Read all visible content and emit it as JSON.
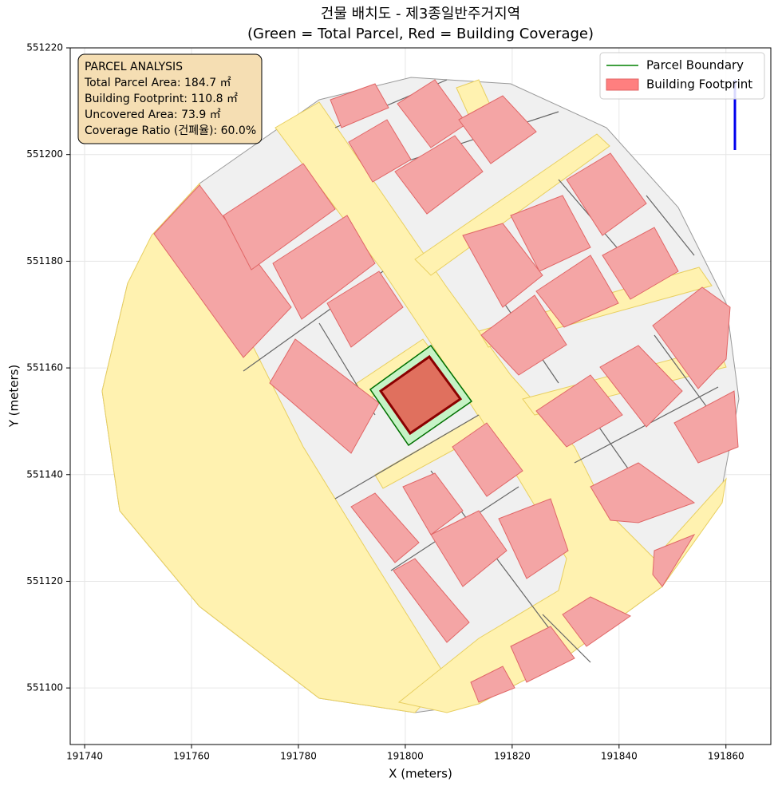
{
  "chart_data": {
    "type": "map",
    "title": "건물 배치도 - 제3종일반주거지역",
    "subtitle": "(Green = Total Parcel, Red = Building Coverage)",
    "xlabel": "X (meters)",
    "ylabel": "Y (meters)",
    "xlim": [
      191737.3,
      191868.4
    ],
    "ylim": [
      551089.4,
      551220
    ],
    "xticks": [
      191740,
      191760,
      191780,
      191800,
      191820,
      191840,
      191860
    ],
    "yticks": [
      551100,
      551120,
      551140,
      551160,
      551180,
      551200,
      551220
    ],
    "grid": true,
    "annotation": [
      "PARCEL ANALYSIS",
      "Total Parcel Area: 184.7 ㎡",
      "Building Footprint: 110.8 ㎡",
      "Uncovered Area: 73.9 ㎡",
      "Coverage Ratio (건폐율): 60.0%"
    ],
    "legend_loc": "upper right",
    "legend": [
      {
        "name": "Parcel Boundary",
        "color": "#008000",
        "kind": "line"
      },
      {
        "name": "Building Footprint",
        "color": "#ff7f7f",
        "kind": "patch"
      }
    ]
  }
}
